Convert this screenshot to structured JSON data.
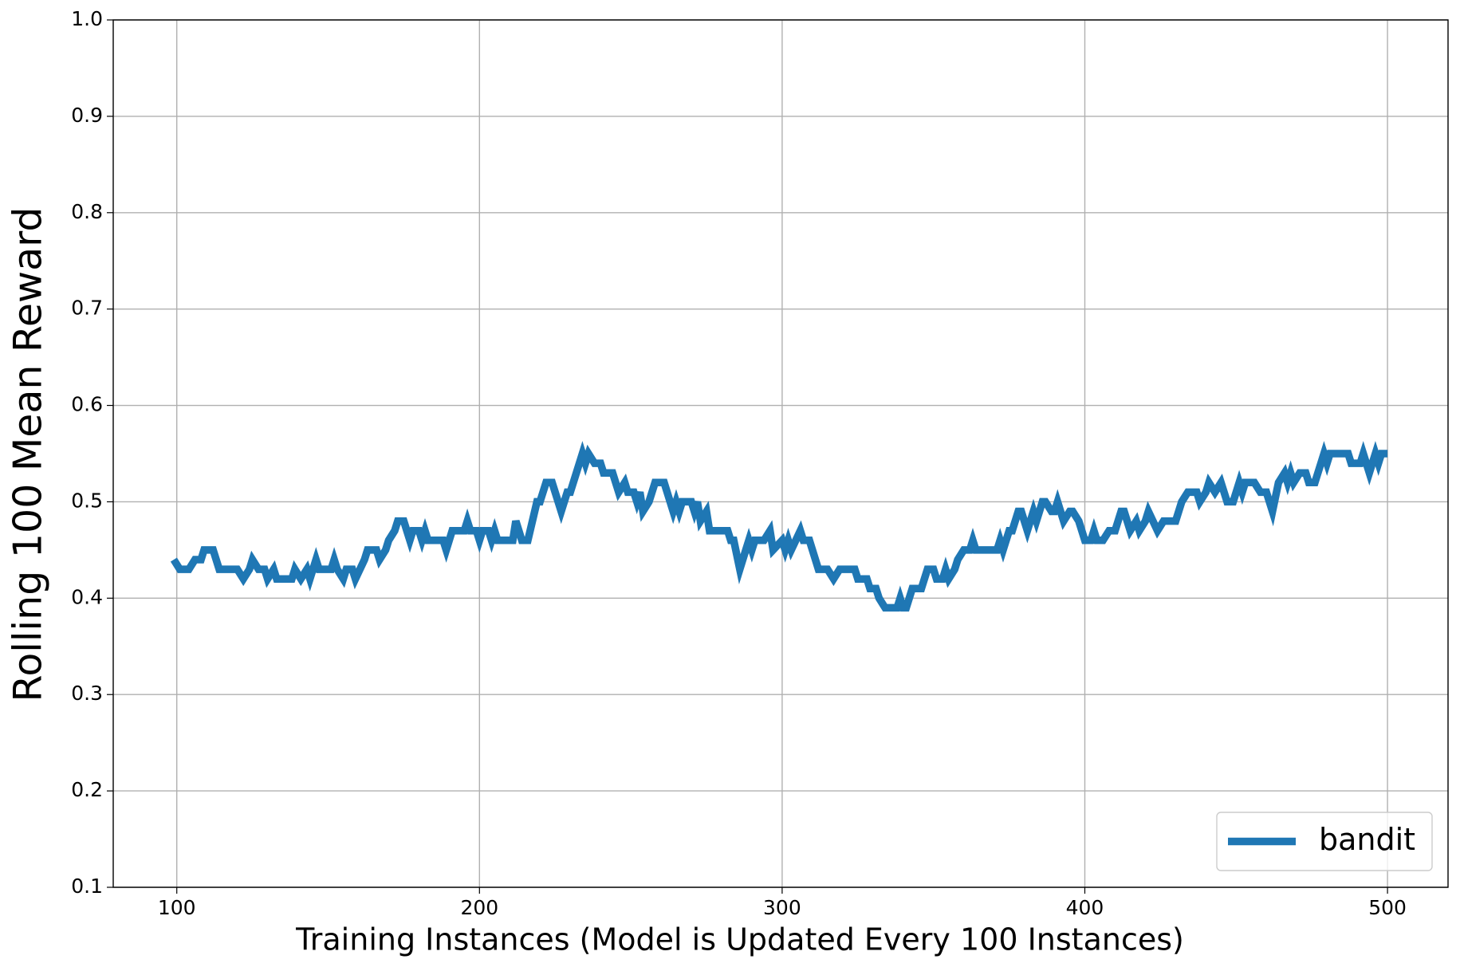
{
  "chart_data": {
    "type": "line",
    "xlabel": "Training Instances (Model is Updated Every 100 Instances)",
    "ylabel": "Rolling 100 Mean Reward",
    "x": [
      99,
      101,
      104,
      106,
      108,
      109,
      112,
      114,
      120,
      122,
      124,
      125,
      127,
      129,
      130,
      132,
      133,
      138,
      139,
      141,
      143,
      144,
      146,
      147,
      151,
      152,
      153,
      155,
      156,
      158,
      159,
      162,
      163,
      166,
      167,
      169,
      170,
      172,
      173,
      175,
      177,
      178,
      180,
      181,
      182,
      183,
      188,
      189,
      191,
      195,
      196,
      197,
      199,
      200,
      201,
      203,
      204,
      205,
      206,
      211,
      212,
      213,
      214,
      216,
      219,
      220,
      222,
      224,
      226,
      227,
      229,
      230,
      232,
      234,
      235,
      236,
      238,
      240,
      241,
      244,
      246,
      248,
      249,
      251,
      252,
      253,
      254,
      256,
      258,
      261,
      263,
      264,
      265,
      266,
      267,
      270,
      271,
      272,
      273,
      275,
      276,
      279,
      282,
      283,
      284,
      286,
      288,
      289,
      290,
      291,
      294,
      296,
      297,
      300,
      301,
      302,
      303,
      306,
      307,
      309,
      312,
      315,
      317,
      319,
      324,
      325,
      328,
      329,
      331,
      332,
      334,
      338,
      339,
      340,
      341,
      343,
      346,
      348,
      350,
      351,
      353,
      354,
      355,
      357,
      358,
      360,
      362,
      363,
      364,
      371,
      372,
      373,
      375,
      376,
      378,
      379,
      381,
      383,
      384,
      385,
      386,
      387,
      389,
      390,
      391,
      392,
      393,
      395,
      396,
      398,
      400,
      402,
      403,
      404,
      406,
      408,
      410,
      412,
      413,
      415,
      417,
      418,
      420,
      421,
      424,
      426,
      428,
      430,
      432,
      434,
      437,
      438,
      440,
      441,
      443,
      445,
      447,
      449,
      451,
      452,
      453,
      456,
      458,
      460,
      462,
      464,
      466,
      467,
      468,
      469,
      471,
      473,
      474,
      476,
      479,
      480,
      481,
      487,
      488,
      491,
      492,
      494,
      496,
      497,
      498,
      500
    ],
    "series": [
      {
        "name": "bandit",
        "color": "#1f77b4",
        "values": [
          0.44,
          0.43,
          0.43,
          0.44,
          0.44,
          0.45,
          0.45,
          0.43,
          0.43,
          0.42,
          0.43,
          0.44,
          0.43,
          0.43,
          0.42,
          0.43,
          0.42,
          0.42,
          0.43,
          0.42,
          0.43,
          0.42,
          0.44,
          0.43,
          0.43,
          0.44,
          0.43,
          0.42,
          0.43,
          0.43,
          0.42,
          0.44,
          0.45,
          0.45,
          0.44,
          0.45,
          0.46,
          0.47,
          0.48,
          0.48,
          0.46,
          0.47,
          0.47,
          0.46,
          0.47,
          0.46,
          0.46,
          0.45,
          0.47,
          0.47,
          0.48,
          0.47,
          0.47,
          0.46,
          0.47,
          0.47,
          0.46,
          0.47,
          0.46,
          0.46,
          0.48,
          0.47,
          0.46,
          0.46,
          0.5,
          0.5,
          0.52,
          0.52,
          0.5,
          0.49,
          0.51,
          0.51,
          0.53,
          0.55,
          0.54,
          0.55,
          0.54,
          0.54,
          0.53,
          0.53,
          0.51,
          0.52,
          0.51,
          0.51,
          0.5,
          0.51,
          0.49,
          0.5,
          0.52,
          0.52,
          0.5,
          0.49,
          0.5,
          0.49,
          0.5,
          0.5,
          0.49,
          0.5,
          0.48,
          0.49,
          0.47,
          0.47,
          0.47,
          0.46,
          0.46,
          0.43,
          0.45,
          0.46,
          0.45,
          0.46,
          0.46,
          0.47,
          0.45,
          0.46,
          0.45,
          0.46,
          0.45,
          0.47,
          0.46,
          0.46,
          0.43,
          0.43,
          0.42,
          0.43,
          0.43,
          0.42,
          0.42,
          0.41,
          0.41,
          0.4,
          0.39,
          0.39,
          0.4,
          0.39,
          0.39,
          0.41,
          0.41,
          0.43,
          0.43,
          0.42,
          0.42,
          0.43,
          0.42,
          0.43,
          0.44,
          0.45,
          0.45,
          0.46,
          0.45,
          0.45,
          0.46,
          0.45,
          0.47,
          0.47,
          0.49,
          0.49,
          0.47,
          0.49,
          0.48,
          0.49,
          0.5,
          0.5,
          0.49,
          0.49,
          0.5,
          0.49,
          0.48,
          0.49,
          0.49,
          0.48,
          0.46,
          0.46,
          0.47,
          0.46,
          0.46,
          0.47,
          0.47,
          0.49,
          0.49,
          0.47,
          0.48,
          0.47,
          0.48,
          0.49,
          0.47,
          0.48,
          0.48,
          0.48,
          0.5,
          0.51,
          0.51,
          0.5,
          0.51,
          0.52,
          0.51,
          0.52,
          0.5,
          0.5,
          0.52,
          0.51,
          0.52,
          0.52,
          0.51,
          0.51,
          0.49,
          0.52,
          0.53,
          0.52,
          0.53,
          0.52,
          0.53,
          0.53,
          0.52,
          0.52,
          0.55,
          0.54,
          0.55,
          0.55,
          0.54,
          0.54,
          0.55,
          0.53,
          0.55,
          0.54,
          0.55,
          0.55
        ]
      }
    ],
    "xlim": [
      79,
      520
    ],
    "ylim": [
      0.1,
      1.0
    ],
    "xticks": [
      100,
      200,
      300,
      400,
      500
    ],
    "yticks": [
      0.1,
      0.2,
      0.3,
      0.4,
      0.5,
      0.6,
      0.7,
      0.8,
      0.9,
      {
        "value": 1.0,
        "label": "1.0"
      }
    ],
    "grid": true,
    "legend": "lower right"
  }
}
